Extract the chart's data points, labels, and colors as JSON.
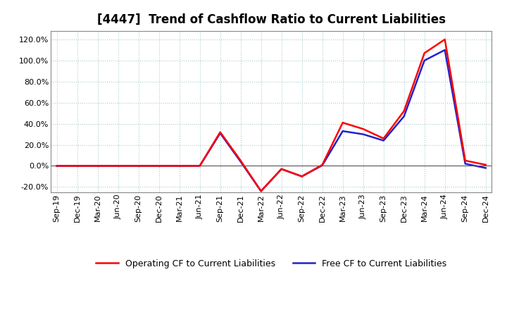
{
  "title": "[4447]  Trend of Cashflow Ratio to Current Liabilities",
  "x_labels": [
    "Sep-19",
    "Dec-19",
    "Mar-20",
    "Jun-20",
    "Sep-20",
    "Dec-20",
    "Mar-21",
    "Jun-21",
    "Sep-21",
    "Dec-21",
    "Mar-22",
    "Jun-22",
    "Sep-22",
    "Dec-22",
    "Mar-23",
    "Jun-23",
    "Sep-23",
    "Dec-23",
    "Mar-24",
    "Jun-24",
    "Sep-24",
    "Dec-24"
  ],
  "op_vals": [
    0.0,
    0.0,
    0.0,
    0.0,
    0.0,
    0.0,
    0.0,
    0.0,
    32.0,
    5.0,
    -24.0,
    -3.0,
    -10.0,
    1.0,
    41.0,
    35.0,
    26.0,
    52.0,
    107.0,
    120.0,
    5.0,
    1.0
  ],
  "free_vals": [
    0.0,
    0.0,
    0.0,
    0.0,
    0.0,
    0.0,
    0.0,
    0.0,
    31.0,
    4.0,
    -24.0,
    -3.0,
    -10.0,
    0.5,
    33.0,
    30.0,
    24.0,
    47.0,
    100.0,
    110.0,
    2.0,
    -2.0
  ],
  "operating_color": "#FF0000",
  "free_color": "#2222CC",
  "ylim": [
    -25.0,
    128.0
  ],
  "yticks": [
    -20.0,
    0.0,
    20.0,
    40.0,
    60.0,
    80.0,
    100.0,
    120.0
  ],
  "background_color": "#FFFFFF",
  "plot_bg_color": "#FFFFFF",
  "grid_color": "#AAAAAA",
  "legend_op": "Operating CF to Current Liabilities",
  "legend_free": "Free CF to Current Liabilities",
  "title_fontsize": 12,
  "label_fontsize": 8,
  "legend_fontsize": 9,
  "linewidth": 1.8
}
